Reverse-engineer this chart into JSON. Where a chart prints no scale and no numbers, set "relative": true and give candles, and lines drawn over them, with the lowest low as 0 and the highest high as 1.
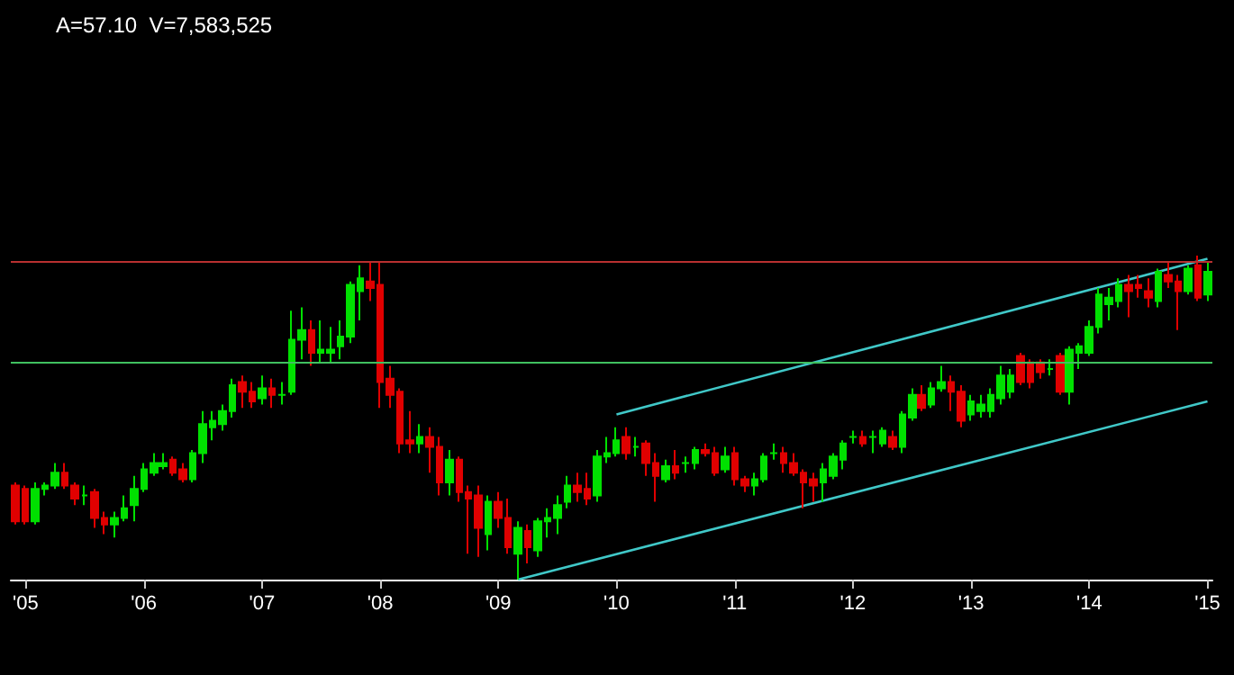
{
  "chart_data": {
    "type": "candlestick",
    "title": "A=57.10  V=7,583,525",
    "relative": true,
    "grid": false,
    "tick_labels": "x",
    "categories": [
      null,
      "'05",
      null,
      null,
      null,
      null,
      null,
      null,
      null,
      null,
      null,
      null,
      null,
      "'06",
      null,
      null,
      null,
      null,
      null,
      null,
      null,
      null,
      null,
      null,
      null,
      "'07",
      null,
      null,
      null,
      null,
      null,
      null,
      null,
      null,
      null,
      null,
      null,
      "'08",
      null,
      null,
      null,
      null,
      null,
      null,
      null,
      null,
      null,
      null,
      null,
      "'09",
      null,
      null,
      null,
      null,
      null,
      null,
      null,
      null,
      null,
      null,
      null,
      "'10",
      null,
      null,
      null,
      null,
      null,
      null,
      null,
      null,
      null,
      null,
      null,
      "'11",
      null,
      null,
      null,
      null,
      null,
      null,
      null,
      null,
      null,
      null,
      null,
      "'12",
      null,
      null,
      null,
      null,
      null,
      null,
      null,
      null,
      null,
      null,
      null,
      "'13",
      null,
      null,
      null,
      null,
      null,
      null,
      null,
      null,
      null,
      null,
      null,
      "'14",
      null,
      null,
      null,
      null,
      null,
      null,
      null,
      null,
      null,
      null,
      null,
      "'15"
    ],
    "ohlc": [
      [
        0.29,
        0.3,
        0.17,
        0.18
      ],
      [
        0.28,
        0.29,
        0.17,
        0.18
      ],
      [
        0.18,
        0.3,
        0.17,
        0.28
      ],
      [
        0.28,
        0.3,
        0.26,
        0.29
      ],
      [
        0.29,
        0.36,
        0.28,
        0.33
      ],
      [
        0.33,
        0.36,
        0.28,
        0.29
      ],
      [
        0.29,
        0.3,
        0.23,
        0.25
      ],
      [
        0.26,
        0.29,
        0.23,
        0.26
      ],
      [
        0.27,
        0.28,
        0.16,
        0.19
      ],
      [
        0.19,
        0.21,
        0.14,
        0.17
      ],
      [
        0.17,
        0.21,
        0.13,
        0.19
      ],
      [
        0.19,
        0.26,
        0.18,
        0.22
      ],
      [
        0.23,
        0.32,
        0.18,
        0.28
      ],
      [
        0.28,
        0.36,
        0.27,
        0.34
      ],
      [
        0.33,
        0.39,
        0.32,
        0.36
      ],
      [
        0.35,
        0.39,
        0.34,
        0.36
      ],
      [
        0.37,
        0.38,
        0.32,
        0.33
      ],
      [
        0.34,
        0.36,
        0.3,
        0.31
      ],
      [
        0.31,
        0.4,
        0.3,
        0.39
      ],
      [
        0.39,
        0.52,
        0.36,
        0.48
      ],
      [
        0.47,
        0.52,
        0.43,
        0.49
      ],
      [
        0.48,
        0.54,
        0.46,
        0.52
      ],
      [
        0.52,
        0.62,
        0.5,
        0.6
      ],
      [
        0.61,
        0.63,
        0.53,
        0.58
      ],
      [
        0.58,
        0.61,
        0.53,
        0.55
      ],
      [
        0.56,
        0.63,
        0.54,
        0.59
      ],
      [
        0.59,
        0.62,
        0.53,
        0.57
      ],
      [
        0.57,
        0.61,
        0.54,
        0.57
      ],
      [
        0.58,
        0.83,
        0.57,
        0.74
      ],
      [
        0.74,
        0.84,
        0.68,
        0.77
      ],
      [
        0.77,
        0.8,
        0.66,
        0.7
      ],
      [
        0.7,
        0.8,
        0.67,
        0.71
      ],
      [
        0.7,
        0.78,
        0.67,
        0.71
      ],
      [
        0.72,
        0.8,
        0.68,
        0.75
      ],
      [
        0.75,
        0.92,
        0.73,
        0.91
      ],
      [
        0.89,
        0.97,
        0.8,
        0.93
      ],
      [
        0.92,
        0.98,
        0.86,
        0.9
      ],
      [
        0.91,
        0.98,
        0.53,
        0.61
      ],
      [
        0.62,
        0.66,
        0.53,
        0.57
      ],
      [
        0.58,
        0.59,
        0.39,
        0.42
      ],
      [
        0.43,
        0.52,
        0.39,
        0.42
      ],
      [
        0.42,
        0.48,
        0.39,
        0.44
      ],
      [
        0.44,
        0.47,
        0.33,
        0.41
      ],
      [
        0.41,
        0.44,
        0.26,
        0.3
      ],
      [
        0.3,
        0.4,
        0.26,
        0.37
      ],
      [
        0.37,
        0.38,
        0.24,
        0.27
      ],
      [
        0.27,
        0.29,
        0.08,
        0.25
      ],
      [
        0.26,
        0.29,
        0.07,
        0.16
      ],
      [
        0.14,
        0.26,
        0.09,
        0.24
      ],
      [
        0.24,
        0.27,
        0.16,
        0.19
      ],
      [
        0.19,
        0.25,
        0.08,
        0.1
      ],
      [
        0.08,
        0.18,
        0,
        0.16
      ],
      [
        0.15,
        0.17,
        0.05,
        0.1
      ],
      [
        0.09,
        0.19,
        0.07,
        0.18
      ],
      [
        0.18,
        0.22,
        0.13,
        0.19
      ],
      [
        0.19,
        0.26,
        0.14,
        0.23
      ],
      [
        0.24,
        0.32,
        0.22,
        0.29
      ],
      [
        0.29,
        0.33,
        0.24,
        0.27
      ],
      [
        0.28,
        0.33,
        0.23,
        0.25
      ],
      [
        0.26,
        0.4,
        0.24,
        0.38
      ],
      [
        0.38,
        0.44,
        0.36,
        0.39
      ],
      [
        0.39,
        0.47,
        0.38,
        0.43
      ],
      [
        0.44,
        0.47,
        0.37,
        0.39
      ],
      [
        0.41,
        0.44,
        0.38,
        0.41
      ],
      [
        0.42,
        0.43,
        0.32,
        0.36
      ],
      [
        0.36,
        0.39,
        0.24,
        0.32
      ],
      [
        0.31,
        0.37,
        0.3,
        0.35
      ],
      [
        0.35,
        0.4,
        0.31,
        0.33
      ],
      [
        0.36,
        0.38,
        0.33,
        0.36
      ],
      [
        0.36,
        0.41,
        0.34,
        0.4
      ],
      [
        0.4,
        0.42,
        0.38,
        0.39
      ],
      [
        0.39,
        0.41,
        0.32,
        0.33
      ],
      [
        0.34,
        0.41,
        0.33,
        0.38
      ],
      [
        0.39,
        0.41,
        0.29,
        0.31
      ],
      [
        0.31,
        0.32,
        0.27,
        0.29
      ],
      [
        0.29,
        0.33,
        0.26,
        0.31
      ],
      [
        0.31,
        0.39,
        0.3,
        0.38
      ],
      [
        0.39,
        0.42,
        0.37,
        0.39
      ],
      [
        0.39,
        0.41,
        0.33,
        0.36
      ],
      [
        0.36,
        0.39,
        0.32,
        0.33
      ],
      [
        0.33,
        0.34,
        0.22,
        0.3
      ],
      [
        0.31,
        0.33,
        0.24,
        0.29
      ],
      [
        0.3,
        0.36,
        0.24,
        0.34
      ],
      [
        0.32,
        0.39,
        0.31,
        0.38
      ],
      [
        0.37,
        0.43,
        0.34,
        0.42
      ],
      [
        0.44,
        0.46,
        0.42,
        0.44
      ],
      [
        0.44,
        0.46,
        0.41,
        0.42
      ],
      [
        0.44,
        0.46,
        0.39,
        0.44
      ],
      [
        0.42,
        0.47,
        0.41,
        0.46
      ],
      [
        0.44,
        0.46,
        0.4,
        0.41
      ],
      [
        0.41,
        0.52,
        0.39,
        0.51
      ],
      [
        0.5,
        0.59,
        0.49,
        0.57
      ],
      [
        0.57,
        0.6,
        0.52,
        0.53
      ],
      [
        0.54,
        0.61,
        0.53,
        0.59
      ],
      [
        0.59,
        0.66,
        0.58,
        0.61
      ],
      [
        0.61,
        0.63,
        0.52,
        0.58
      ],
      [
        0.58,
        0.6,
        0.47,
        0.49
      ],
      [
        0.51,
        0.57,
        0.49,
        0.55
      ],
      [
        0.52,
        0.57,
        0.5,
        0.54
      ],
      [
        0.52,
        0.59,
        0.5,
        0.57
      ],
      [
        0.56,
        0.66,
        0.54,
        0.63
      ],
      [
        0.58,
        0.65,
        0.56,
        0.63
      ],
      [
        0.69,
        0.7,
        0.6,
        0.61
      ],
      [
        0.67,
        0.68,
        0.59,
        0.61
      ],
      [
        0.67,
        0.68,
        0.62,
        0.64
      ],
      [
        0.65,
        0.68,
        0.63,
        0.65
      ],
      [
        0.69,
        0.7,
        0.57,
        0.58
      ],
      [
        0.58,
        0.72,
        0.54,
        0.71
      ],
      [
        0.7,
        0.73,
        0.65,
        0.72
      ],
      [
        0.7,
        0.8,
        0.69,
        0.78
      ],
      [
        0.78,
        0.9,
        0.76,
        0.88
      ],
      [
        0.85,
        0.9,
        0.8,
        0.87
      ],
      [
        0.86,
        0.93,
        0.84,
        0.91
      ],
      [
        0.91,
        0.94,
        0.81,
        0.89
      ],
      [
        0.91,
        0.94,
        0.87,
        0.9
      ],
      [
        0.89,
        0.93,
        0.84,
        0.87
      ],
      [
        0.86,
        0.96,
        0.84,
        0.95
      ],
      [
        0.94,
        0.98,
        0.9,
        0.92
      ],
      [
        0.92,
        0.94,
        0.77,
        0.89
      ],
      [
        0.89,
        0.97,
        0.88,
        0.96
      ],
      [
        0.97,
        1,
        0.86,
        0.87
      ],
      [
        0.88,
        0.98,
        0.86,
        0.95
      ]
    ],
    "series": [
      {
        "type": "line",
        "color": "#40c8c8",
        "values": [
          null,
          null,
          null,
          null,
          null,
          null,
          null,
          null,
          null,
          null,
          null,
          null,
          null,
          null,
          null,
          null,
          null,
          null,
          null,
          null,
          null,
          null,
          null,
          null,
          null,
          null,
          null,
          null,
          null,
          null,
          null,
          null,
          null,
          null,
          null,
          null,
          null,
          null,
          null,
          null,
          null,
          null,
          null,
          null,
          null,
          null,
          null,
          null,
          null,
          null,
          null,
          null,
          null,
          null,
          null,
          null,
          null,
          null,
          null,
          null,
          null,
          0.51,
          null,
          null,
          null,
          null,
          null,
          null,
          null,
          null,
          null,
          null,
          null,
          null,
          null,
          null,
          null,
          null,
          null,
          null,
          null,
          null,
          null,
          null,
          null,
          null,
          null,
          null,
          null,
          null,
          null,
          null,
          null,
          null,
          null,
          null,
          null,
          null,
          null,
          null,
          null,
          null,
          null,
          null,
          null,
          null,
          null,
          null,
          null,
          null,
          null,
          null,
          null,
          null,
          null,
          null,
          null,
          null,
          null,
          null,
          null,
          0.99
        ]
      },
      {
        "type": "line",
        "color": "#40c8c8",
        "values": [
          null,
          null,
          null,
          null,
          null,
          null,
          null,
          null,
          null,
          null,
          null,
          null,
          null,
          null,
          null,
          null,
          null,
          null,
          null,
          null,
          null,
          null,
          null,
          null,
          null,
          null,
          null,
          null,
          null,
          null,
          null,
          null,
          null,
          null,
          null,
          null,
          null,
          null,
          null,
          null,
          null,
          null,
          null,
          null,
          null,
          null,
          null,
          null,
          null,
          null,
          null,
          0,
          null,
          null,
          null,
          null,
          null,
          null,
          null,
          null,
          null,
          null,
          null,
          null,
          null,
          null,
          null,
          null,
          null,
          null,
          null,
          null,
          null,
          null,
          null,
          null,
          null,
          null,
          null,
          null,
          null,
          null,
          null,
          null,
          null,
          null,
          null,
          null,
          null,
          null,
          null,
          null,
          null,
          null,
          null,
          null,
          null,
          null,
          null,
          null,
          null,
          null,
          null,
          null,
          null,
          null,
          null,
          null,
          null,
          null,
          null,
          null,
          null,
          null,
          null,
          null,
          null,
          null,
          null,
          null,
          null,
          0.55
        ]
      }
    ],
    "ref_lines": [
      {
        "axis": "y",
        "value": 0.98,
        "color": "#b83030"
      },
      {
        "axis": "y",
        "value": 0.67,
        "color": "#40c060"
      }
    ]
  }
}
